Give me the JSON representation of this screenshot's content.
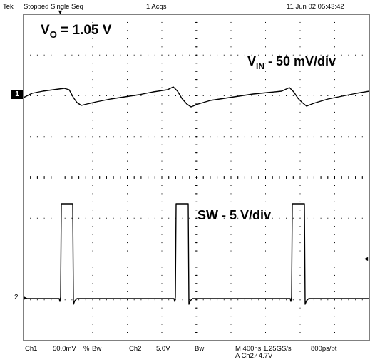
{
  "header": {
    "brand": "Tek",
    "acq_status": "Stopped",
    "acq_mode": "Single Seq",
    "acq_count": "1 Acqs",
    "datetime": "11 Jun 02 05:43:42"
  },
  "annotations": {
    "vo_prefix": "V",
    "vo_sub": "O",
    "vo_value": "= 1.05 V",
    "vin_prefix": "V",
    "vin_sub": "IN",
    "vin_scale": "- 50 mV/div",
    "sw_label": "SW - 5 V/div"
  },
  "markers": {
    "ch1": "1",
    "ch2": "2"
  },
  "footer": {
    "ch1_label": "Ch1",
    "ch1_scale": "50.0mV",
    "ch1_coupling": "%",
    "ch1_bw": "Bw",
    "ch2_label": "Ch2",
    "ch2_scale": "5.0V",
    "ch2_bw": "Bw",
    "timebase": "M 400ns 1.25GS/s",
    "trigger": "A Ch2 ∕ 4.7V",
    "resolution": "800ps/pt"
  },
  "colors": {
    "trace": "#000000",
    "grid": "#000000",
    "background": "#ffffff"
  }
}
